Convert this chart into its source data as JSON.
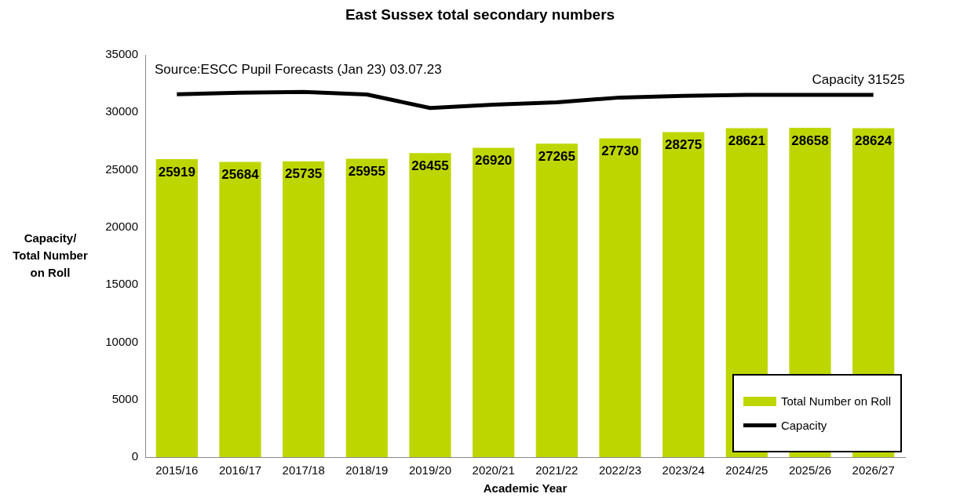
{
  "chart_data": {
    "type": "bar",
    "title": "East Sussex total secondary numbers",
    "xlabel": "Academic Year",
    "ylabel": "Capacity/ Total Number on Roll",
    "categories": [
      "2015/16",
      "2016/17",
      "2017/18",
      "2018/19",
      "2019/20",
      "2020/21",
      "2021/22",
      "2022/23",
      "2023/24",
      "2024/25",
      "2025/26",
      "2026/27"
    ],
    "series": [
      {
        "name": "Total Number on Roll",
        "color": "#bed600",
        "values": [
          25919,
          25684,
          25735,
          25955,
          26455,
          26920,
          27265,
          27730,
          28275,
          28621,
          28658,
          28624
        ],
        "data_labels": true
      },
      {
        "name": "Capacity",
        "type": "line",
        "color": "#000000",
        "values": [
          31570,
          31700,
          31780,
          31550,
          30380,
          30660,
          30870,
          31290,
          31430,
          31525,
          31525,
          31525
        ]
      }
    ],
    "ylim": [
      0,
      35000
    ],
    "yticks": [
      0,
      5000,
      10000,
      15000,
      20000,
      25000,
      30000,
      35000
    ],
    "grid": false,
    "legend": "bottom right",
    "marker": "none",
    "annotations": [
      "Source:ESCC Pupil Forecasts (Jan 23) 03.07.23",
      {
        "text": "Capacity 31525",
        "x": "2026/27",
        "y": 31525
      }
    ]
  }
}
